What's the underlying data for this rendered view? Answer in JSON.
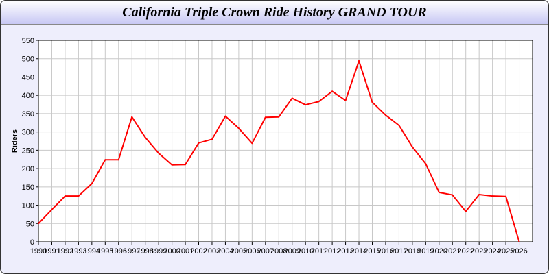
{
  "chart_data": {
    "type": "line",
    "title": "California Triple Crown Ride History GRAND TOUR",
    "xlabel": "",
    "ylabel": "Riders",
    "xlim": [
      1990,
      2027
    ],
    "ylim": [
      0,
      550
    ],
    "yticks": [
      0,
      50,
      100,
      150,
      200,
      250,
      300,
      350,
      400,
      450,
      500,
      550
    ],
    "grid": true,
    "series": [
      {
        "color": "#ff0000",
        "x": [
          1990,
          1991,
          1992,
          1993,
          1994,
          1995,
          1996,
          1997,
          1998,
          1999,
          2000,
          2001,
          2002,
          2003,
          2004,
          2005,
          2006,
          2007,
          2008,
          2009,
          2010,
          2011,
          2012,
          2013,
          2014,
          2015,
          2016,
          2017,
          2018,
          2019,
          2020,
          2021,
          2022,
          2023,
          2024,
          2025,
          2026
        ],
        "y": [
          50,
          88,
          125,
          125,
          159,
          224,
          224,
          341,
          285,
          242,
          210,
          211,
          270,
          280,
          343,
          310,
          269,
          340,
          341,
          392,
          374,
          383,
          411,
          386,
          494,
          381,
          346,
          318,
          259,
          213,
          135,
          128,
          83,
          129,
          125,
          124,
          0
        ]
      }
    ]
  }
}
